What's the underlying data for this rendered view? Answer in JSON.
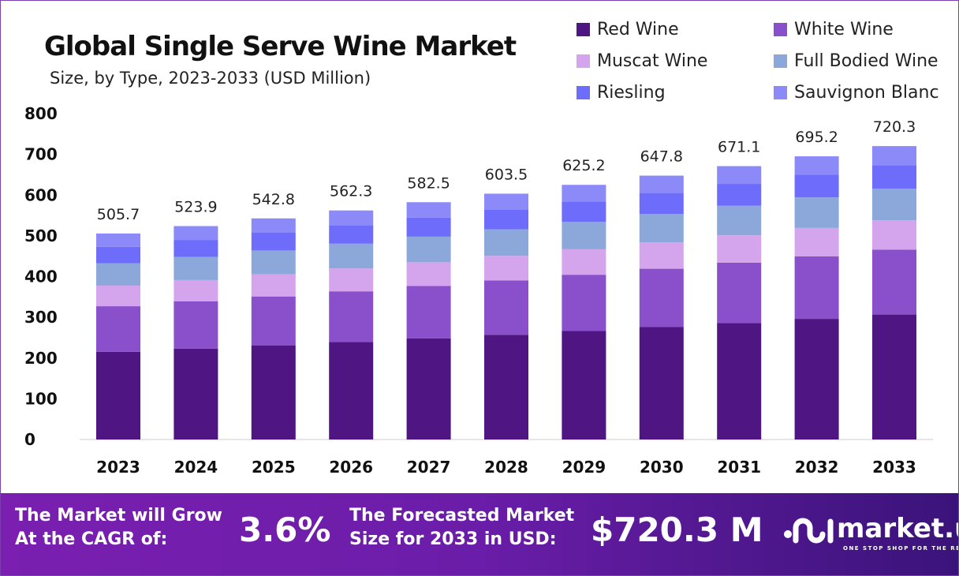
{
  "chart_data": {
    "type": "bar",
    "stacked": true,
    "title": "Global Single Serve Wine Market",
    "subtitle": "Size, by Type, 2023-2033 (USD Million)",
    "categories": [
      "2023",
      "2024",
      "2025",
      "2026",
      "2027",
      "2028",
      "2029",
      "2030",
      "2031",
      "2032",
      "2033"
    ],
    "series": [
      {
        "name": "Red Wine",
        "color": "#4f1582",
        "values": [
          215.4,
          223.2,
          231.2,
          239.5,
          248.1,
          257.1,
          266.3,
          276.0,
          285.9,
          296.2,
          306.8
        ]
      },
      {
        "name": "White Wine",
        "color": "#8a4fcb",
        "values": [
          111.8,
          115.8,
          120.0,
          124.3,
          128.7,
          133.4,
          138.2,
          143.2,
          148.3,
          153.6,
          159.2
        ]
      },
      {
        "name": "Muscat Wine",
        "color": "#d4a4ec",
        "values": [
          50.6,
          52.4,
          54.3,
          56.2,
          58.3,
          60.4,
          62.5,
          64.8,
          67.1,
          69.5,
          72.0
        ]
      },
      {
        "name": "Full Bodied Wine",
        "color": "#8ca8da",
        "values": [
          54.6,
          56.6,
          58.6,
          60.7,
          62.9,
          65.2,
          67.5,
          70.0,
          72.5,
          75.1,
          77.8
        ]
      },
      {
        "name": "Riesling",
        "color": "#6e6cfb",
        "values": [
          40.5,
          41.9,
          43.4,
          45.0,
          46.6,
          48.3,
          50.0,
          51.8,
          53.7,
          55.6,
          57.6
        ]
      },
      {
        "name": "Sauvignon Blanc",
        "color": "#8c89f8",
        "values": [
          32.8,
          34.0,
          35.3,
          36.6,
          37.9,
          39.1,
          40.7,
          42.0,
          43.6,
          45.2,
          46.9
        ]
      }
    ],
    "totals": [
      "505.7",
      "523.9",
      "542.8",
      "562.3",
      "582.5",
      "603.5",
      "625.2",
      "647.8",
      "671.1",
      "695.2",
      "720.3"
    ],
    "yticks": [
      "0",
      "100",
      "200",
      "300",
      "400",
      "500",
      "600",
      "700",
      "800"
    ],
    "ylim": [
      0,
      800
    ],
    "grid": false,
    "legend_position": "top-right"
  },
  "footer": {
    "cagr_label_1": "The Market will Grow",
    "cagr_label_2": "At the CAGR of:",
    "cagr_value": "3.6%",
    "forecast_label_1": "The Forecasted Market",
    "forecast_label_2": "Size for 2033 in USD:",
    "forecast_value": "$720.3 M",
    "logo_text": "market.us",
    "logo_tagline": "ONE STOP SHOP FOR THE REPORTS"
  }
}
